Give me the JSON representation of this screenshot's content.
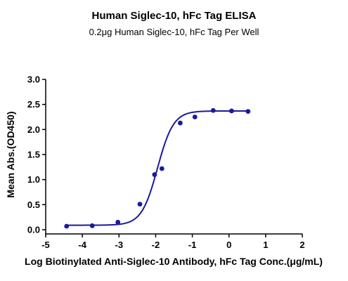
{
  "chart_data": {
    "type": "scatter",
    "title": "Human Siglec-10, hFc Tag ELISA",
    "subtitle": "0.2μg Human Siglec-10, hFc Tag Per Well",
    "xlabel": "Log Biotinylated Anti-Siglec-10 Antibody, hFc Tag Conc.(μg/mL)",
    "ylabel": "Mean Abs.(OD450)",
    "xlim": [
      -5,
      2
    ],
    "ylim": [
      0,
      3.0
    ],
    "x_ticks": [
      "-5",
      "-4",
      "-3",
      "-2",
      "-1",
      "0",
      "1",
      "2"
    ],
    "y_ticks": [
      "0.0",
      "0.5",
      "1.0",
      "1.5",
      "2.0",
      "2.5",
      "3.0"
    ],
    "grid": false,
    "series": [
      {
        "x": [
          -4.43,
          -3.73,
          -3.03,
          -2.43,
          -2.03,
          -1.83,
          -1.33,
          -0.93,
          -0.43,
          0.07,
          0.52
        ],
        "y": [
          0.07,
          0.08,
          0.15,
          0.51,
          1.1,
          1.22,
          2.13,
          2.25,
          2.38,
          2.37,
          2.36
        ]
      }
    ],
    "fit_curve": {
      "bottom": 0.09,
      "top": 2.37,
      "log_ec50": -1.95,
      "hill_slope": 2.0
    },
    "colors": {
      "series": "#1a1a9c",
      "axis": "#000000"
    }
  }
}
